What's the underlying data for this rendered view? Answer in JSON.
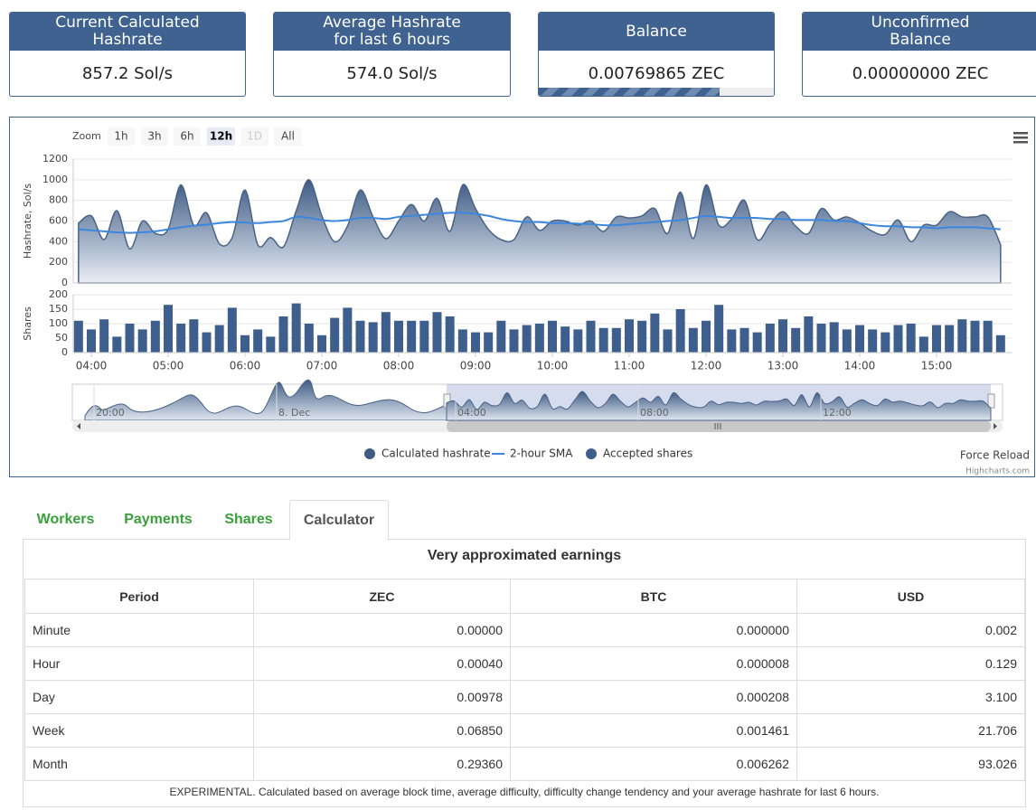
{
  "cards": [
    {
      "title": "Current Calculated Hashrate",
      "value": "857.2 Sol/s"
    },
    {
      "title": "Average Hashrate for last 6 hours",
      "value": "574.0 Sol/s"
    },
    {
      "title": "Balance",
      "value": "0.00769865 ZEC"
    },
    {
      "title": "Unconfirmed Balance",
      "value": "0.00000000 ZEC"
    }
  ],
  "chart_ui": {
    "zoom_label": "Zoom",
    "zoom_buttons": [
      "1h",
      "3h",
      "6h",
      "12h",
      "1D",
      "All"
    ],
    "zoom_selected": 3,
    "zoom_disabled": [
      4
    ],
    "navigator_labels": [
      "20:00",
      "8. Dec",
      "04:00",
      "08:00",
      "12:00"
    ],
    "force_reload": "Force Reload",
    "credits": "Highcharts.com"
  },
  "chart_data": [
    {
      "type": "area",
      "ylabel": "Hashrate, Sol/s",
      "ylim": [
        0,
        1200
      ],
      "yticks": [
        0,
        200,
        400,
        600,
        800,
        1000,
        1200
      ],
      "grid": true,
      "x": [
        "03:50",
        "04:00",
        "04:10",
        "04:20",
        "04:30",
        "04:40",
        "04:50",
        "05:00",
        "05:10",
        "05:20",
        "05:30",
        "05:40",
        "05:50",
        "06:00",
        "06:10",
        "06:20",
        "06:30",
        "06:40",
        "06:50",
        "07:00",
        "07:10",
        "07:20",
        "07:30",
        "07:40",
        "07:50",
        "08:00",
        "08:10",
        "08:20",
        "08:30",
        "08:40",
        "08:50",
        "09:00",
        "09:10",
        "09:20",
        "09:30",
        "09:40",
        "09:50",
        "10:00",
        "10:10",
        "10:20",
        "10:30",
        "10:40",
        "10:50",
        "11:00",
        "11:10",
        "11:20",
        "11:30",
        "11:40",
        "11:50",
        "12:00",
        "12:10",
        "12:20",
        "12:30",
        "12:40",
        "12:50",
        "13:00",
        "13:10",
        "13:20",
        "13:30",
        "13:40",
        "13:50",
        "14:00",
        "14:10",
        "14:20",
        "14:30",
        "14:40",
        "14:50",
        "15:00",
        "15:10",
        "15:20",
        "15:30",
        "15:40",
        "15:50"
      ],
      "series": [
        {
          "name": "Calculated hashrate",
          "color": "#3e5b84",
          "values": [
            580,
            650,
            420,
            700,
            330,
            600,
            480,
            520,
            950,
            560,
            680,
            380,
            440,
            900,
            370,
            440,
            350,
            700,
            1000,
            650,
            400,
            550,
            900,
            640,
            430,
            600,
            760,
            600,
            820,
            500,
            950,
            720,
            520,
            420,
            420,
            640,
            510,
            600,
            600,
            560,
            600,
            500,
            640,
            630,
            650,
            720,
            480,
            880,
            430,
            950,
            560,
            620,
            800,
            420,
            570,
            690,
            550,
            480,
            720,
            610,
            640,
            580,
            500,
            470,
            610,
            400,
            560,
            560,
            690,
            640,
            640,
            640,
            370
          ]
        },
        {
          "name": "2-hour SMA",
          "type": "line",
          "color": "#3c86de",
          "values": [
            520,
            510,
            500,
            490,
            485,
            490,
            500,
            520,
            540,
            555,
            565,
            580,
            590,
            585,
            580,
            590,
            600,
            640,
            630,
            610,
            600,
            610,
            630,
            630,
            620,
            640,
            650,
            660,
            670,
            680,
            680,
            670,
            650,
            620,
            600,
            590,
            590,
            580,
            580,
            575,
            570,
            560,
            560,
            570,
            580,
            590,
            600,
            610,
            630,
            650,
            640,
            630,
            630,
            630,
            620,
            620,
            610,
            610,
            610,
            600,
            600,
            580,
            560,
            550,
            550,
            540,
            540,
            530,
            540,
            540,
            540,
            530,
            520
          ]
        }
      ]
    },
    {
      "type": "bar",
      "ylabel": "Shares",
      "ylim": [
        0,
        200
      ],
      "yticks": [
        0,
        50,
        100,
        150,
        200
      ],
      "xticks": [
        "04:00",
        "05:00",
        "06:00",
        "07:00",
        "08:00",
        "09:00",
        "10:00",
        "11:00",
        "12:00",
        "13:00",
        "14:00",
        "15:00"
      ],
      "x": [
        "03:50",
        "04:00",
        "04:10",
        "04:20",
        "04:30",
        "04:40",
        "04:50",
        "05:00",
        "05:10",
        "05:20",
        "05:30",
        "05:40",
        "05:50",
        "06:00",
        "06:10",
        "06:20",
        "06:30",
        "06:40",
        "06:50",
        "07:00",
        "07:10",
        "07:20",
        "07:30",
        "07:40",
        "07:50",
        "08:00",
        "08:10",
        "08:20",
        "08:30",
        "08:40",
        "08:50",
        "09:00",
        "09:10",
        "09:20",
        "09:30",
        "09:40",
        "09:50",
        "10:00",
        "10:10",
        "10:20",
        "10:30",
        "10:40",
        "10:50",
        "11:00",
        "11:10",
        "11:20",
        "11:30",
        "11:40",
        "11:50",
        "12:00",
        "12:10",
        "12:20",
        "12:30",
        "12:40",
        "12:50",
        "13:00",
        "13:10",
        "13:20",
        "13:30",
        "13:40",
        "13:50",
        "14:00",
        "14:10",
        "14:20",
        "14:30",
        "14:40",
        "14:50",
        "15:00",
        "15:10",
        "15:20",
        "15:30",
        "15:40",
        "15:50"
      ],
      "series": [
        {
          "name": "Accepted shares",
          "color": "#3e5f8e",
          "values": [
            110,
            80,
            115,
            55,
            100,
            80,
            110,
            165,
            100,
            115,
            70,
            95,
            155,
            60,
            80,
            55,
            125,
            170,
            100,
            60,
            120,
            155,
            110,
            105,
            140,
            110,
            110,
            110,
            140,
            125,
            80,
            70,
            70,
            110,
            80,
            95,
            100,
            110,
            90,
            80,
            110,
            85,
            85,
            115,
            110,
            135,
            80,
            150,
            85,
            110,
            165,
            80,
            85,
            70,
            100,
            115,
            85,
            125,
            100,
            105,
            80,
            95,
            80,
            70,
            95,
            100,
            55,
            95,
            95,
            115,
            110,
            110,
            60
          ]
        }
      ]
    }
  ],
  "tabs": [
    "Workers",
    "Payments",
    "Shares",
    "Calculator"
  ],
  "active_tab": 3,
  "table": {
    "title": "Very approximated earnings",
    "header": [
      "Period",
      "ZEC",
      "BTC",
      "USD"
    ],
    "rows": [
      [
        "Minute",
        "0.00000",
        "0.000000",
        "0.002"
      ],
      [
        "Hour",
        "0.00040",
        "0.000008",
        "0.129"
      ],
      [
        "Day",
        "0.00978",
        "0.000208",
        "3.100"
      ],
      [
        "Week",
        "0.06850",
        "0.001461",
        "21.706"
      ],
      [
        "Month",
        "0.29360",
        "0.006262",
        "93.026"
      ]
    ],
    "note": "EXPERIMENTAL. Calculated based on average block time, average difficulty, difficulty change tendency and your average hashrate for last 6 hours."
  }
}
